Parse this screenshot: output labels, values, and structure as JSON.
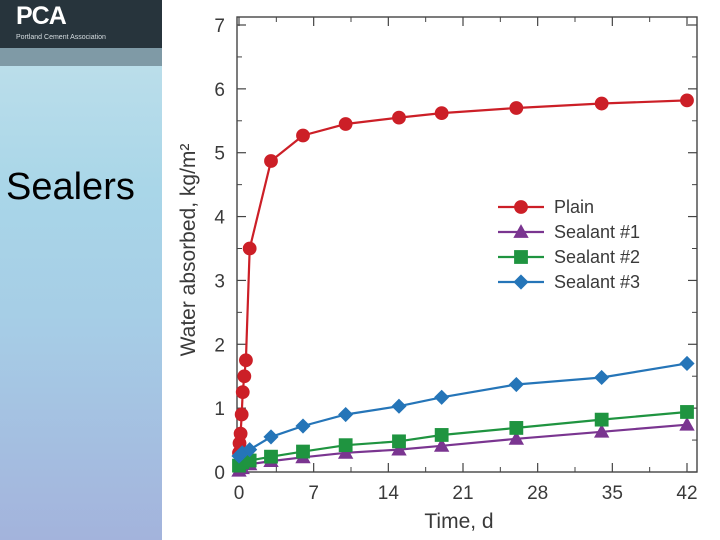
{
  "slide": {
    "logo_text": "PCA",
    "logo_subtitle": "Portland Cement Association",
    "title": "Sealers"
  },
  "chart_data": {
    "type": "line",
    "xlabel": "Time, d",
    "ylabel": "Water absorbed, kg/m²",
    "xlim": [
      0,
      42
    ],
    "ylim": [
      0,
      7
    ],
    "xticks": [
      0,
      7,
      14,
      21,
      28,
      35,
      42
    ],
    "yticks": [
      0,
      1,
      2,
      3,
      4,
      5,
      6,
      7
    ],
    "legend_position": "center-right",
    "series": [
      {
        "name": "Plain",
        "color": "#cc1f27",
        "marker": "circle",
        "x": [
          0,
          0.05,
          0.15,
          0.25,
          0.35,
          0.5,
          0.65,
          1,
          3,
          6,
          10,
          15,
          19,
          26,
          34,
          42
        ],
        "y": [
          0.3,
          0.45,
          0.6,
          0.9,
          1.25,
          1.5,
          1.75,
          3.5,
          4.87,
          5.27,
          5.45,
          5.55,
          5.62,
          5.7,
          5.77,
          5.82
        ]
      },
      {
        "name": "Sealant #1",
        "color": "#7a3590",
        "marker": "triangle",
        "x": [
          0,
          0.3,
          1,
          3,
          6,
          10,
          15,
          19,
          26,
          34,
          42
        ],
        "y": [
          0.02,
          0.06,
          0.12,
          0.17,
          0.23,
          0.3,
          0.35,
          0.41,
          0.52,
          0.63,
          0.74
        ]
      },
      {
        "name": "Sealant #2",
        "color": "#1f9440",
        "marker": "square",
        "x": [
          0,
          0.3,
          1,
          3,
          6,
          10,
          15,
          19,
          26,
          34,
          42
        ],
        "y": [
          0.1,
          0.15,
          0.18,
          0.24,
          0.32,
          0.42,
          0.48,
          0.58,
          0.69,
          0.82,
          0.94
        ]
      },
      {
        "name": "Sealant #3",
        "color": "#2575b8",
        "marker": "diamond",
        "x": [
          0,
          0.3,
          1,
          3,
          6,
          10,
          15,
          19,
          26,
          34,
          42
        ],
        "y": [
          0.25,
          0.3,
          0.35,
          0.55,
          0.72,
          0.9,
          1.03,
          1.17,
          1.37,
          1.48,
          1.7
        ]
      }
    ]
  }
}
